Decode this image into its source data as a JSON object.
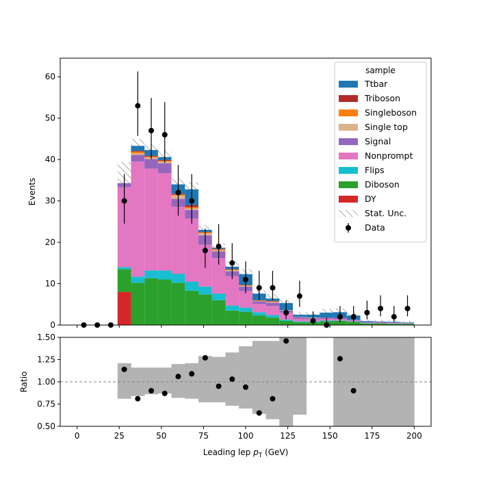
{
  "chart_data": [
    {
      "type": "bar",
      "stacked": true,
      "xlabel_prefix": "Leading lep ",
      "xlabel_sym": "p",
      "xlabel_sub": "T",
      "xlabel_suffix": " (GeV)",
      "ylabel": "Events",
      "xlim": [
        -10,
        210
      ],
      "ylim": [
        0,
        64.5
      ],
      "xticks": [
        0,
        25,
        50,
        75,
        100,
        125,
        150,
        175,
        200
      ],
      "yticks": [
        0,
        10,
        20,
        30,
        40,
        50,
        60
      ],
      "bin_edges": [
        0,
        8,
        16,
        24,
        32,
        40,
        48,
        56,
        64,
        72,
        80,
        88,
        96,
        104,
        112,
        120,
        128,
        136,
        144,
        152,
        160,
        168,
        176,
        184,
        192,
        200
      ],
      "legend_title": "sample",
      "legend_position": "upper right",
      "series": [
        {
          "name": "DY",
          "color": "#d62728",
          "values": [
            0,
            0,
            0,
            8,
            0,
            0,
            0,
            0,
            0,
            0,
            0,
            0,
            0,
            0,
            0,
            0,
            0,
            0,
            0,
            0,
            0,
            0,
            0,
            0,
            0
          ]
        },
        {
          "name": "Diboson",
          "color": "#2ca02c",
          "values": [
            0,
            0,
            0,
            5.5,
            10.2,
            11.3,
            11,
            10.2,
            8.3,
            7.4,
            6,
            3.5,
            3.2,
            2.3,
            1.8,
            1,
            0.7,
            0.7,
            0.9,
            1,
            0.8,
            0.4,
            0.4,
            0.3,
            0.3
          ]
        },
        {
          "name": "Flips",
          "color": "#17becf",
          "values": [
            0,
            0,
            0,
            0.5,
            1.5,
            1.9,
            2.2,
            2.2,
            2.2,
            1.9,
            1.6,
            1.2,
            1,
            0.8,
            0.6,
            0.3,
            0.2,
            0.2,
            0.2,
            0.1,
            0.1,
            0.05,
            0.05,
            0.05,
            0.05
          ]
        },
        {
          "name": "Nonprompt",
          "color": "#e377c2",
          "values": [
            0,
            0,
            0,
            19.3,
            27.8,
            24.6,
            23.5,
            16.2,
            15.2,
            10.1,
            8.6,
            7.1,
            4,
            2,
            2.2,
            1.7,
            0.6,
            0.5,
            0.4,
            0.3,
            0.2,
            0.1,
            0.1,
            0.1,
            0.1
          ]
        },
        {
          "name": "Signal",
          "color": "#9467bd",
          "values": [
            0,
            0,
            0,
            1,
            1.6,
            2.3,
            2.4,
            1.9,
            2.1,
            2.3,
            1.6,
            1.2,
            1.1,
            0.6,
            0.8,
            0.5,
            0.4,
            0.3,
            0.3,
            0.3,
            0.2,
            0.2,
            0.2,
            0.2,
            0.1
          ]
        },
        {
          "name": "Single top",
          "color": "#dbb38a",
          "values": [
            0,
            0,
            0,
            0,
            0.4,
            0.4,
            0.4,
            0.8,
            0.4,
            0.5,
            0.3,
            0.3,
            0.2,
            0.1,
            0.2,
            0.1,
            0.1,
            0.1,
            0,
            0,
            0,
            0,
            0,
            0,
            0
          ]
        },
        {
          "name": "Singleboson",
          "color": "#ff7f0e",
          "values": [
            0,
            0,
            0,
            0,
            0.4,
            0.2,
            0.2,
            0.2,
            0.3,
            0.2,
            0.2,
            0.1,
            0.1,
            0.1,
            0.1,
            0,
            0,
            0,
            0,
            0,
            0,
            0,
            0,
            0,
            0
          ]
        },
        {
          "name": "Triboson",
          "color": "#b22a2a",
          "values": [
            0,
            0,
            0,
            0,
            0.2,
            0.2,
            0.2,
            0.2,
            0.5,
            0.1,
            0.1,
            0.1,
            0.1,
            0.1,
            0.1,
            0,
            0,
            0,
            0,
            0,
            0,
            0,
            0,
            0,
            0
          ]
        },
        {
          "name": "Ttbar",
          "color": "#1f77b4",
          "values": [
            0,
            0,
            0,
            0,
            1.2,
            1.4,
            0.7,
            2.3,
            3.8,
            0.5,
            0.3,
            0.6,
            2.6,
            1.6,
            0.6,
            1.7,
            0.5,
            0.7,
            1.2,
            1.4,
            1,
            0.2,
            0.1,
            0.1,
            0.1
          ]
        }
      ],
      "stat_unc": {
        "name": "Stat. Unc.",
        "values": [
          0,
          0,
          0,
          5.1,
          1.7,
          1.3,
          1.6,
          1.4,
          1.7,
          1.2,
          1.1,
          1.3,
          1.2,
          0.8,
          1.1,
          0.9,
          0.6,
          0.6,
          0.9,
          0.9,
          0.7,
          0.4,
          0.4,
          0.4,
          0.3
        ]
      },
      "data": {
        "name": "Data",
        "x": [
          4,
          12,
          20,
          28,
          36,
          44,
          52,
          60,
          68,
          76,
          84,
          92,
          100,
          108,
          116,
          124,
          132,
          140,
          148,
          156,
          164,
          172,
          180,
          188,
          196
        ],
        "y": [
          0,
          0,
          0,
          30,
          53,
          47,
          46,
          32,
          30,
          18,
          19,
          15,
          11,
          9,
          9,
          3,
          7,
          1,
          0,
          2,
          2,
          3,
          4,
          2,
          4
        ],
        "err_up": [
          0,
          0,
          0,
          6.5,
          8.3,
          7.9,
          7.9,
          6.7,
          6.5,
          5.3,
          5.4,
          4.8,
          4.4,
          4.1,
          4.1,
          2.9,
          3.7,
          2.3,
          1.8,
          2.6,
          2.6,
          2.9,
          3.2,
          2.6,
          3.2
        ],
        "err_down": [
          0,
          0,
          0,
          5.5,
          7.3,
          6.9,
          6.8,
          5.6,
          5.5,
          4.2,
          4.4,
          3.9,
          3.3,
          3,
          3,
          1.6,
          2.6,
          0.8,
          0,
          1.3,
          1.3,
          1.6,
          1.9,
          1.3,
          1.9
        ]
      }
    },
    {
      "type": "scatter",
      "ylabel": "Ratio",
      "xlim": [
        -10,
        210
      ],
      "ylim": [
        0.5,
        1.5
      ],
      "xticks": [
        0,
        25,
        50,
        75,
        100,
        125,
        150,
        175,
        200
      ],
      "yticks": [
        0.5,
        0.75,
        1.0,
        1.25,
        1.5
      ],
      "ytick_labels": [
        "0.50",
        "0.75",
        "1.00",
        "1.25",
        "1.50"
      ],
      "reference_line": 1.0,
      "unc_band_color": "#b3b3b3",
      "unc_band": {
        "low": [
          null,
          null,
          null,
          0.81,
          0.84,
          0.86,
          0.87,
          0.82,
          0.81,
          0.77,
          0.77,
          0.73,
          0.7,
          0.64,
          0.58,
          0.45,
          0.63,
          null,
          null,
          0.4,
          0.4,
          0.4,
          0.4,
          0.48,
          0.4
        ],
        "high": [
          null,
          null,
          null,
          1.21,
          1.16,
          1.16,
          1.16,
          1.2,
          1.21,
          1.29,
          1.28,
          1.33,
          1.4,
          1.46,
          1.46,
          1.6,
          1.6,
          null,
          null,
          1.6,
          1.6,
          1.6,
          1.6,
          1.6,
          1.6
        ]
      },
      "points": {
        "x": [
          28,
          36,
          44,
          52,
          60,
          68,
          76,
          84,
          92,
          100,
          108,
          116,
          124,
          156,
          164
        ],
        "y": [
          1.14,
          0.81,
          0.9,
          0.87,
          1.06,
          1.09,
          1.27,
          0.95,
          1.03,
          0.94,
          0.65,
          0.81,
          1.46,
          1.26,
          0.9
        ]
      }
    }
  ]
}
